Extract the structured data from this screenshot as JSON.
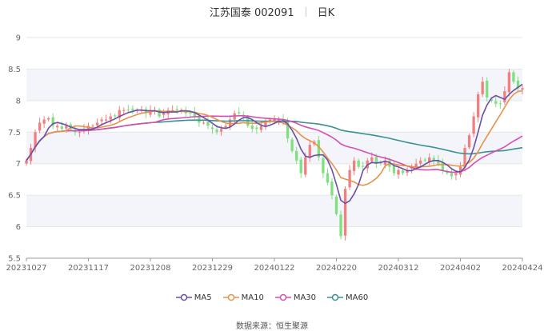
{
  "header": {
    "stock_title": "江苏国泰 002091",
    "period_label": "日K"
  },
  "source": {
    "label": "数据来源：",
    "name": "恒生聚源"
  },
  "colors": {
    "up": "#f08080",
    "down": "#7fe07f",
    "MA5": "#6a4fa8",
    "MA10": "#e8914a",
    "MA30": "#d24fb4",
    "MA60": "#3a9090",
    "band": "#f3f5fb",
    "grid": "#e6e6e6",
    "axis": "#999999"
  },
  "chart_data": {
    "type": "candlestick",
    "title": "江苏国泰 002091",
    "period": "日K",
    "ylim": [
      5.5,
      9
    ],
    "yticks": [
      "5.5",
      "6",
      "6.5",
      "7",
      "7.5",
      "8",
      "8.5",
      "9"
    ],
    "xlabels": [
      "20231027",
      "20231117",
      "20231208",
      "20231229",
      "20240122",
      "20240220",
      "20240312",
      "20240402",
      "20240424"
    ],
    "grid": true,
    "legend_position": "bottom",
    "legend": [
      "MA5",
      "MA10",
      "MA30",
      "MA60"
    ],
    "closes": [
      7.05,
      7.25,
      7.5,
      7.65,
      7.7,
      7.72,
      7.6,
      7.6,
      7.55,
      7.6,
      7.55,
      7.5,
      7.5,
      7.55,
      7.6,
      7.6,
      7.65,
      7.7,
      7.7,
      7.75,
      7.75,
      7.85,
      7.85,
      7.85,
      7.85,
      7.85,
      7.85,
      7.8,
      7.85,
      7.85,
      7.75,
      7.8,
      7.85,
      7.85,
      7.85,
      7.85,
      7.8,
      7.8,
      7.75,
      7.65,
      7.65,
      7.6,
      7.55,
      7.5,
      7.55,
      7.6,
      7.7,
      7.8,
      7.8,
      7.75,
      7.6,
      7.55,
      7.55,
      7.6,
      7.65,
      7.7,
      7.7,
      7.7,
      7.65,
      7.4,
      7.2,
      7.05,
      6.85,
      7.1,
      7.3,
      7.35,
      7.1,
      6.85,
      6.7,
      6.5,
      6.2,
      5.85,
      6.6,
      6.9,
      7.05,
      6.95,
      6.95,
      7.05,
      7.1,
      7.0,
      7.0,
      7.05,
      6.95,
      6.85,
      6.9,
      6.85,
      6.9,
      6.95,
      7.0,
      7.05,
      7.05,
      7.1,
      7.05,
      7.0,
      6.9,
      6.85,
      6.8,
      6.85,
      6.95,
      7.25,
      7.45,
      7.75,
      8.1,
      8.3,
      8.05,
      8.0,
      7.95,
      7.95,
      8.15,
      8.45,
      8.3,
      8.2,
      8.2
    ]
  }
}
